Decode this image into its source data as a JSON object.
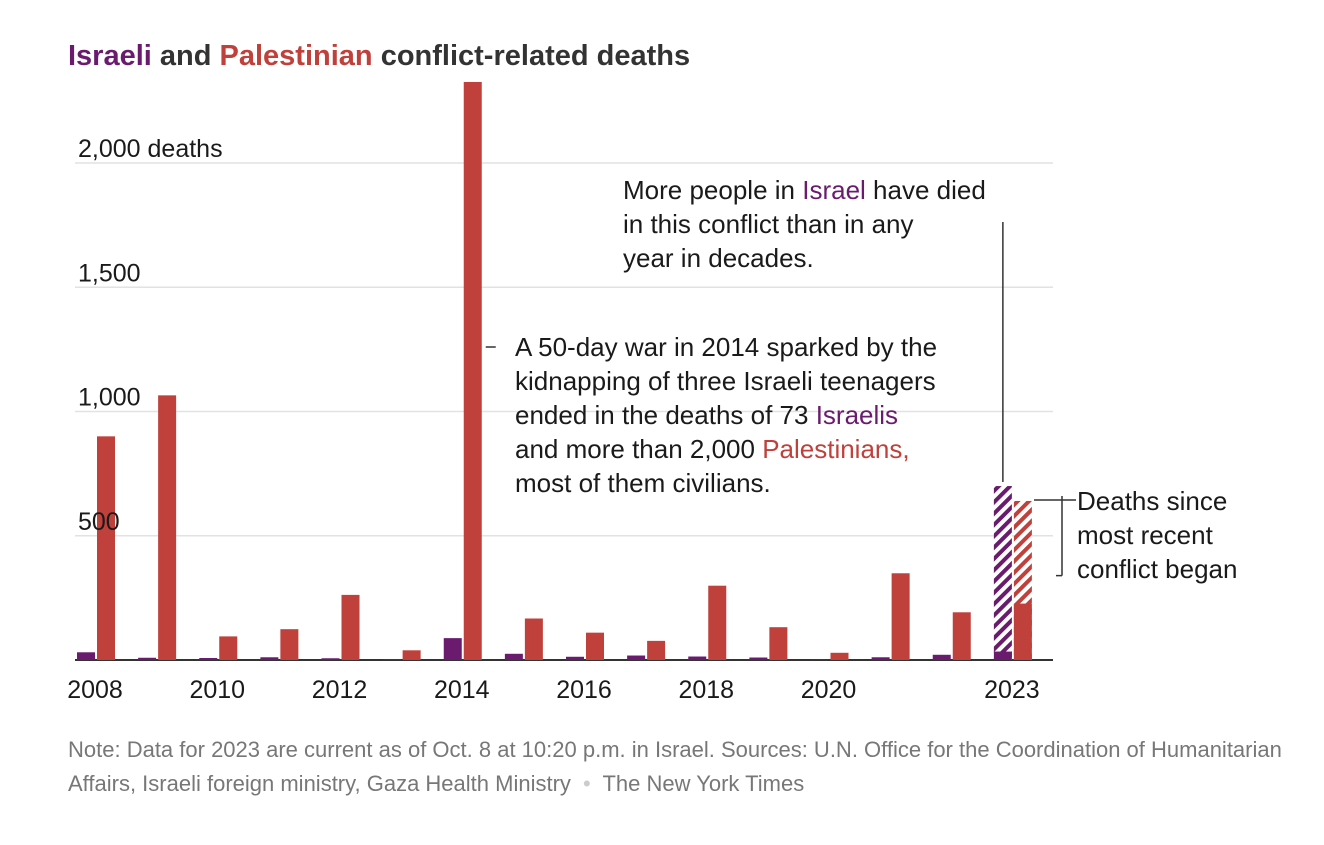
{
  "title": {
    "part1": "Israeli",
    "part2": " and ",
    "part3": "Palestinian",
    "part4": " conflict-related deaths"
  },
  "colors": {
    "israeli": "#6a1b6e",
    "palestinian": "#c0403b",
    "grid": "#e2e2e2",
    "axis": "#333333"
  },
  "annotations": {
    "israel_conflict": {
      "a": "More people in ",
      "b": "Israel",
      "c": " have died",
      "d": "in this conflict than in any",
      "e": "year in decades."
    },
    "war_2014": {
      "l1": "A 50-day war in 2014 sparked by the",
      "l2": "kidnapping of three Israeli teenagers",
      "l3a": "ended in the deaths of 73 ",
      "l3b": "Israelis",
      "l4a": "and more than 2,000 ",
      "l4b": "Palestinians,",
      "l5": "most of them civilians."
    },
    "recent": {
      "l1": "Deaths since",
      "l2": "most recent",
      "l3": "conflict began"
    }
  },
  "source": {
    "note": "Note: Data for 2023 are current as of Oct. 8 at 10:20 p.m. in Israel. Sources: U.N. Office for the Coordination of Humanitarian Affairs, Israeli foreign ministry, Gaza Health Ministry",
    "sep": "•",
    "credit": "The New York Times"
  },
  "chart_data": {
    "type": "bar",
    "ylim": [
      0,
      2320
    ],
    "yticks": [
      500,
      1000,
      1500,
      2000
    ],
    "ytick_labels": [
      "500",
      "1,000",
      "1,500",
      "2,000 deaths"
    ],
    "years": [
      2008,
      2009,
      2010,
      2011,
      2012,
      2013,
      2014,
      2015,
      2016,
      2017,
      2018,
      2019,
      2020,
      2021,
      2022,
      2023
    ],
    "xtick_labels": [
      "2008",
      "",
      "2010",
      "",
      "2012",
      "",
      "2014",
      "",
      "2016",
      "",
      "2018",
      "",
      "2020",
      "",
      "",
      "2023"
    ],
    "series": [
      {
        "name": "Israeli",
        "values": [
          31,
          9,
          8,
          11,
          7,
          4,
          88,
          25,
          13,
          18,
          14,
          10,
          3,
          11,
          21,
          34
        ],
        "recent_2023": 700
      },
      {
        "name": "Palestinian",
        "values": [
          900,
          1065,
          95,
          124,
          262,
          39,
          2326,
          167,
          110,
          77,
          299,
          132,
          29,
          349,
          192,
          227
        ],
        "recent_2023": 413
      }
    ],
    "grid": true
  }
}
